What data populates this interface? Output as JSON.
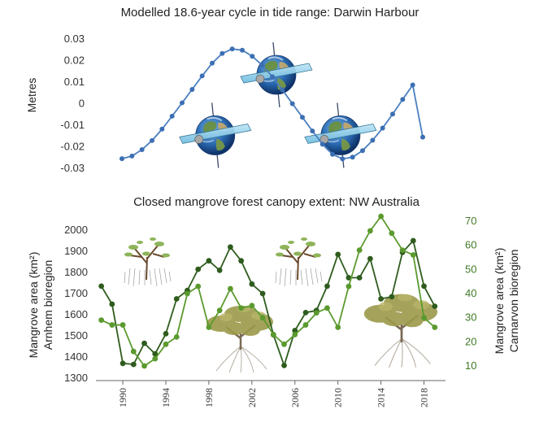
{
  "chart_data": [
    {
      "type": "line",
      "title": "Modelled 18.6-year cycle in tide range: Darwin Harbour",
      "ylabel": "Metres",
      "ylim": [
        -0.03,
        0.03
      ],
      "yticks": [
        "0.03",
        "0.02",
        "0.01",
        "0",
        "-0.01",
        "-0.02",
        "-0.03"
      ],
      "grid": false,
      "colors": {
        "line": "#4a7fc1",
        "marker": "#3c6fb3"
      },
      "icons": [
        "earth-orbit-icon",
        "earth-orbit-icon",
        "earth-orbit-icon"
      ],
      "x": [
        1988.5,
        1989.5,
        1990.5,
        1991.5,
        1992.5,
        1993.5,
        1994.5,
        1995.5,
        1996.5,
        1997.5,
        1998.5,
        1999.5,
        2000.5,
        2001.5,
        2002.5,
        2003.5,
        2004.5,
        2005.5,
        2006.5,
        2007.5,
        2008.5,
        2009.5,
        2010.5,
        2011.5,
        2012.5,
        2013.5,
        2014.5,
        2015.5,
        2016.5,
        2017.5,
        2018.5
      ],
      "values": [
        -0.0255,
        -0.0243,
        -0.0213,
        -0.0171,
        -0.0118,
        -0.0058,
        0.0004,
        0.0066,
        0.0129,
        0.0188,
        0.0233,
        0.0254,
        0.0248,
        0.022,
        0.0178,
        0.0125,
        0.0064,
        0.0,
        -0.0063,
        -0.0127,
        -0.0188,
        -0.0235,
        -0.0256,
        -0.0248,
        -0.0218,
        -0.017,
        -0.0113,
        -0.0048,
        0.002,
        0.0087,
        -0.0155
      ]
    },
    {
      "type": "line",
      "title": "Closed mangrove forest  canopy extent: NW Australia",
      "xlabel": "",
      "ylabel": "Mangrove area (km²)",
      "ylabel2": "Arnhem bioregion",
      "y2label": "Mangrove area (km²)",
      "y2label2": "Carnarvon bioregion",
      "ylim": [
        1300,
        2000
      ],
      "y2lim": [
        10,
        70
      ],
      "yticks": [
        "2000",
        "1900",
        "1800",
        "1700",
        "1600",
        "1500",
        "1400",
        "1300"
      ],
      "y2ticks": [
        "70",
        "60",
        "50",
        "40",
        "30",
        "20",
        "10"
      ],
      "xticks": [
        "1990",
        "1994",
        "1998",
        "2002",
        "2006",
        "2010",
        "2014",
        "2018"
      ],
      "xlim": [
        1987.5,
        2020
      ],
      "grid": false,
      "icons": [
        "mangrove-sapling-icon",
        "mangrove-tree-icon",
        "mangrove-sapling-icon",
        "mangrove-tree-icon"
      ],
      "series": [
        {
          "color": "#2e5c1d",
          "axis": "left",
          "x": [
            1988,
            1989,
            1990,
            1991,
            1992,
            1993,
            1994,
            1995,
            1996,
            1997,
            1998,
            1999,
            2000,
            2001,
            2002,
            2003,
            2004,
            2005,
            2006,
            2007,
            2008,
            2009,
            2010,
            2011,
            2012,
            2013,
            2014,
            2015,
            2016,
            2017,
            2018,
            2019
          ],
          "values": [
            1735,
            1650,
            1370,
            1365,
            1465,
            1415,
            1510,
            1675,
            1715,
            1815,
            1855,
            1810,
            1920,
            1855,
            1745,
            1700,
            1505,
            1360,
            1525,
            1610,
            1620,
            1735,
            1885,
            1775,
            1775,
            1865,
            1675,
            1685,
            1895,
            1950,
            1735,
            1640
          ]
        },
        {
          "color": "#5b9a2e",
          "axis": "right",
          "x": [
            1988,
            1989,
            1990,
            1991,
            1992,
            1993,
            1994,
            1995,
            1996,
            1997,
            1998,
            1999,
            2000,
            2001,
            2002,
            2003,
            2004,
            2005,
            2006,
            2007,
            2008,
            2009,
            2010,
            2011,
            2012,
            2013,
            2014,
            2015,
            2016,
            2017,
            2018,
            2019
          ],
          "values": [
            29,
            27,
            27,
            16,
            10,
            13,
            19,
            22,
            40,
            43,
            26,
            33,
            42,
            34,
            35,
            30,
            23,
            19,
            23,
            27,
            32,
            34,
            26,
            43,
            58,
            66,
            72,
            65,
            58,
            56,
            30,
            26
          ]
        }
      ]
    }
  ]
}
